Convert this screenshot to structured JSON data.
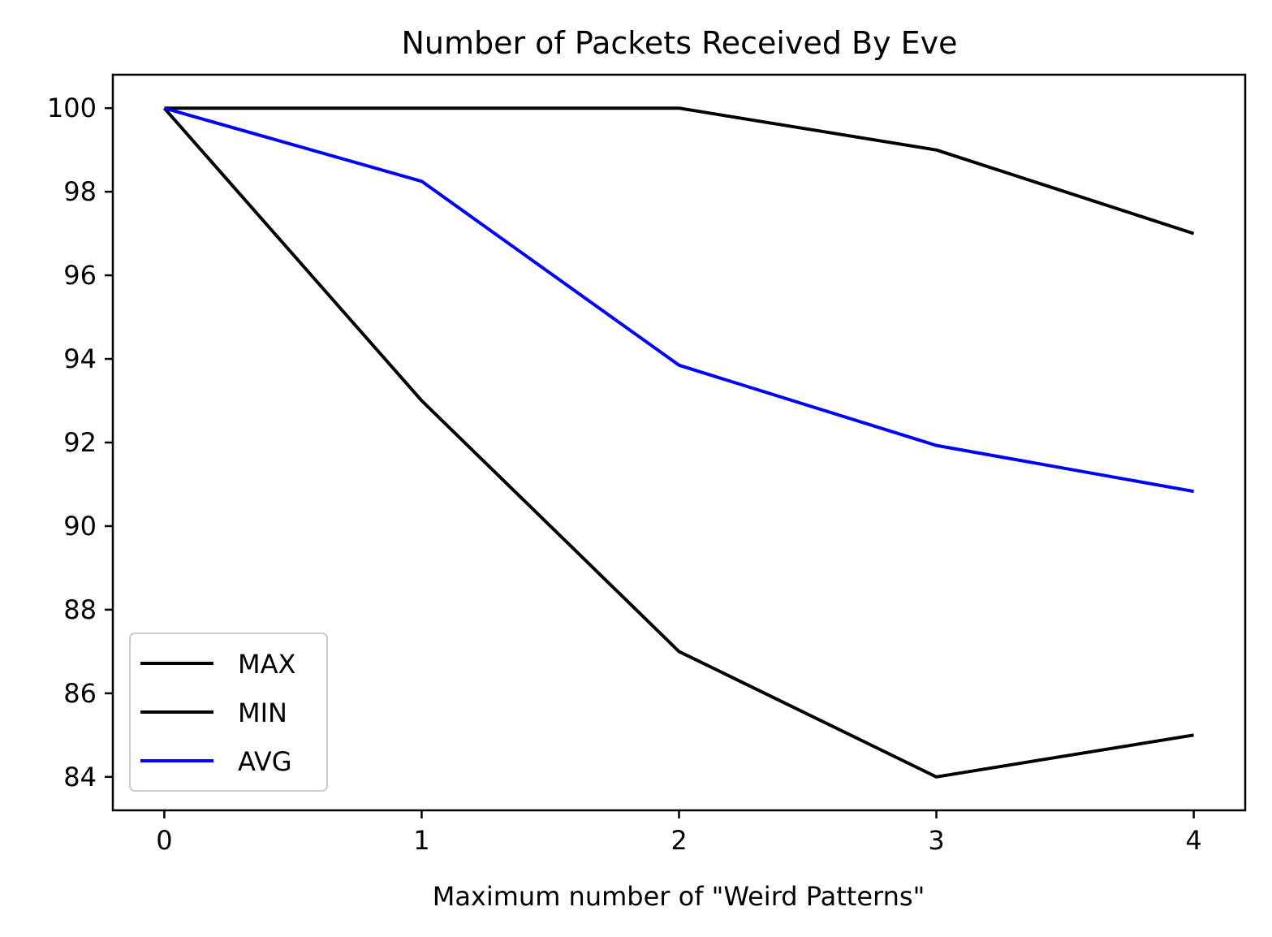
{
  "chart_data": {
    "type": "line",
    "title": "Number of Packets Received By Eve",
    "xlabel": "Maximum number of \"Weird Patterns\"",
    "ylabel": "",
    "x": [
      0,
      1,
      2,
      3,
      4
    ],
    "xlim": [
      -0.2,
      4.2
    ],
    "ylim": [
      83.2,
      100.8
    ],
    "xticks": [
      0,
      1,
      2,
      3,
      4
    ],
    "yticks": [
      84,
      86,
      88,
      90,
      92,
      94,
      96,
      98,
      100
    ],
    "grid": false,
    "legend_position": "lower-left",
    "series": [
      {
        "name": "MAX",
        "color": "#000000",
        "values": [
          100,
          100,
          100,
          99,
          97
        ]
      },
      {
        "name": "MIN",
        "color": "#000000",
        "values": [
          100,
          93,
          87,
          84,
          85
        ]
      },
      {
        "name": "AVG",
        "color": "#0000ff",
        "values": [
          100,
          98.25,
          93.85,
          91.93,
          90.83
        ]
      }
    ]
  }
}
